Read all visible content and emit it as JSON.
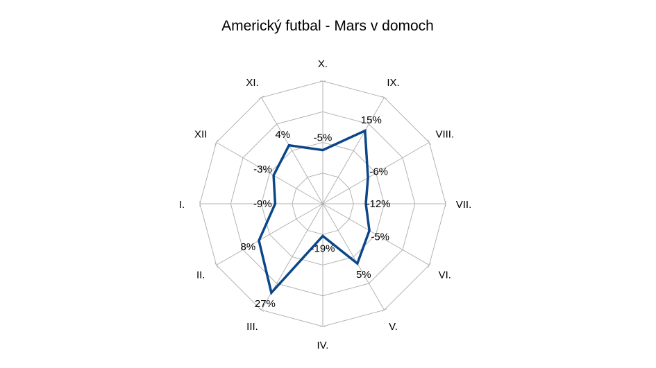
{
  "chart_data": {
    "type": "radar",
    "title": "Americký futbal - Mars v domoch",
    "categories": [
      "X.",
      "IX.",
      "VIII.",
      "VII.",
      "VI.",
      "V.",
      "IV.",
      "III.",
      "II.",
      "I.",
      "XII",
      "XI."
    ],
    "series": [
      {
        "values": [
          -5,
          15,
          -6,
          -12,
          -5,
          5,
          -19,
          27,
          8,
          -9,
          -3,
          4
        ],
        "labels": [
          "-5%",
          "15%",
          "-6%",
          "-12%",
          "-5%",
          "5%",
          "-19%",
          "27%",
          "8%",
          "-9%",
          "-3%",
          "4%"
        ]
      }
    ],
    "rlim": [
      -40,
      40
    ],
    "grid_rings": 4,
    "grid": true,
    "legend": "none",
    "colors": {
      "series": "#0b4687",
      "grid": "#b3b3b3",
      "text": "#000000"
    }
  }
}
